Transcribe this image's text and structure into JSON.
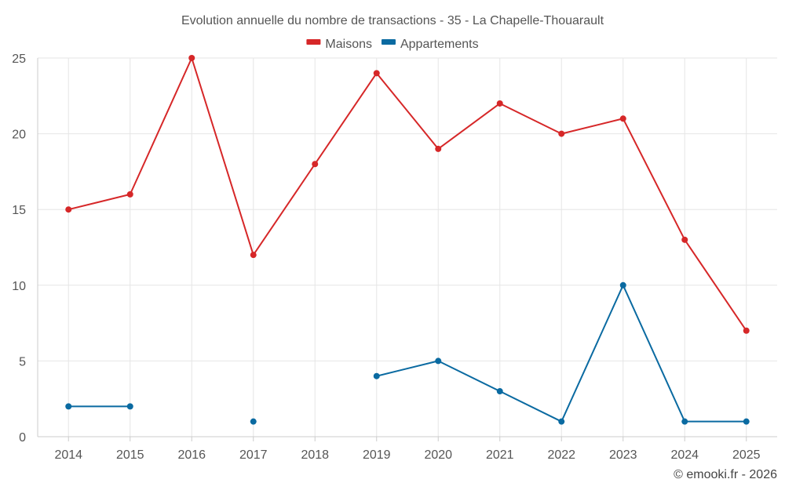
{
  "chart_data": {
    "type": "line",
    "title": "Evolution annuelle du nombre de transactions - 35 - La Chapelle-Thouarault",
    "categories": [
      "2014",
      "2015",
      "2016",
      "2017",
      "2018",
      "2019",
      "2020",
      "2021",
      "2022",
      "2023",
      "2024",
      "2025"
    ],
    "series": [
      {
        "name": "Maisons",
        "color": "#d62728",
        "values": [
          15,
          16,
          25,
          12,
          18,
          24,
          19,
          22,
          20,
          21,
          13,
          7
        ]
      },
      {
        "name": "Appartements",
        "color": "#0a6aa1",
        "values": [
          2,
          2,
          null,
          1,
          null,
          4,
          5,
          3,
          1,
          10,
          1,
          1
        ]
      }
    ],
    "ylim": [
      0,
      25
    ],
    "yticks": [
      0,
      5,
      10,
      15,
      20,
      25
    ],
    "grid": true,
    "legend": "top-center",
    "xlabel": "",
    "ylabel": ""
  },
  "credit": "© emooki.fr - 2026"
}
